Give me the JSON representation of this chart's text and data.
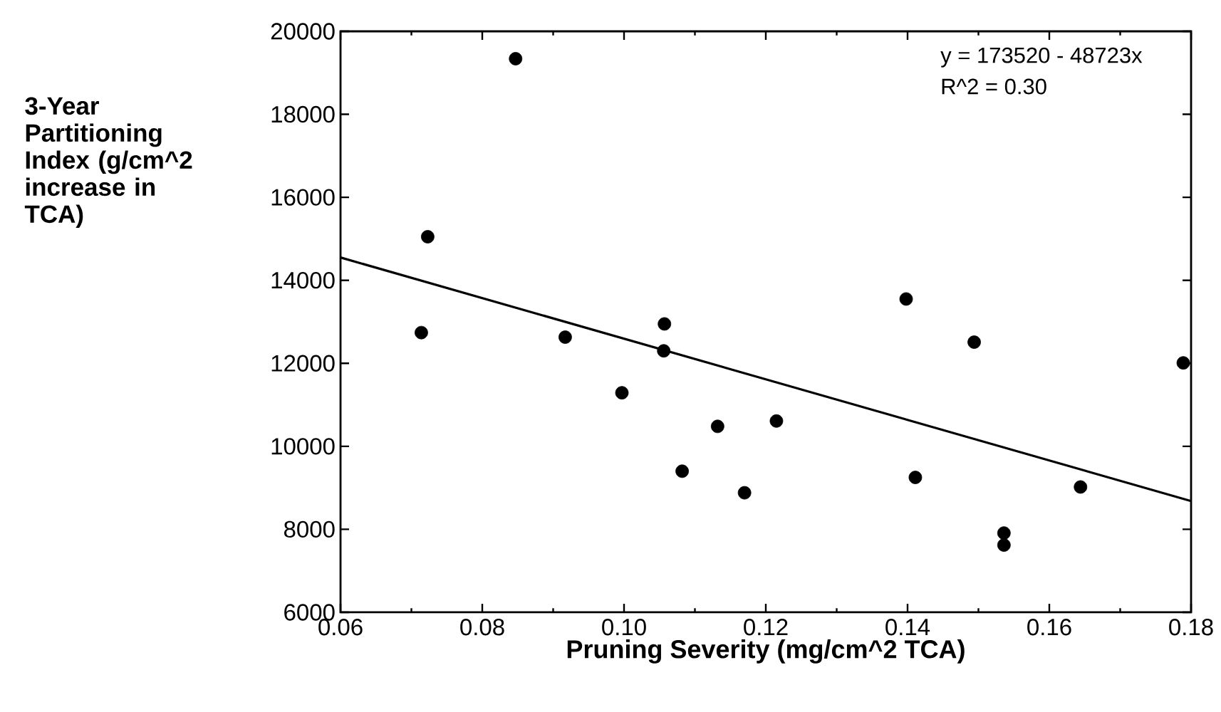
{
  "chart_data": {
    "type": "scatter",
    "xlabel": "Pruning Severity (mg/cm^2 TCA)",
    "ylabel": "3-Year Partitioning Index (g/cm^2 increase in TCA)",
    "annotations": [
      "y = 173520 - 48723x",
      "R^2 = 0.30"
    ],
    "xlim": [
      0.06,
      0.18
    ],
    "xticks": [
      {
        "value": 0.06,
        "label": "0.06"
      },
      {
        "value": 0.08,
        "label": "0.08"
      },
      {
        "value": 0.1,
        "label": "0.10"
      },
      {
        "value": 0.12,
        "label": "0.12"
      },
      {
        "value": 0.14,
        "label": "0.14"
      },
      {
        "value": 0.16,
        "label": "0.16"
      },
      {
        "value": 0.18,
        "label": "0.18"
      }
    ],
    "ylim": [
      6000,
      20000
    ],
    "yticks": [
      6000,
      8000,
      10000,
      12000,
      14000,
      16000,
      18000,
      20000
    ],
    "grid": false,
    "series": [
      {
        "color": "#000000",
        "marker": "circle",
        "x": [
          0.0847,
          0.0723,
          0.0714,
          0.0917,
          0.1057,
          0.1056,
          0.0997,
          0.1398,
          0.1494,
          0.1789,
          0.1132,
          0.1215,
          0.1082,
          0.117,
          0.1411,
          0.1644,
          0.1536,
          0.1536
        ],
        "values": [
          19340,
          15050,
          12740,
          12630,
          12950,
          12300,
          11290,
          13550,
          12510,
          12010,
          10480,
          10610,
          9400,
          8880,
          9250,
          9020,
          7910,
          7620
        ]
      },
      {
        "type": "line",
        "color": "#000000",
        "marker": "none",
        "line_style": "solid",
        "x": [
          0.06,
          0.18
        ],
        "values": [
          14550,
          8680
        ]
      }
    ]
  }
}
